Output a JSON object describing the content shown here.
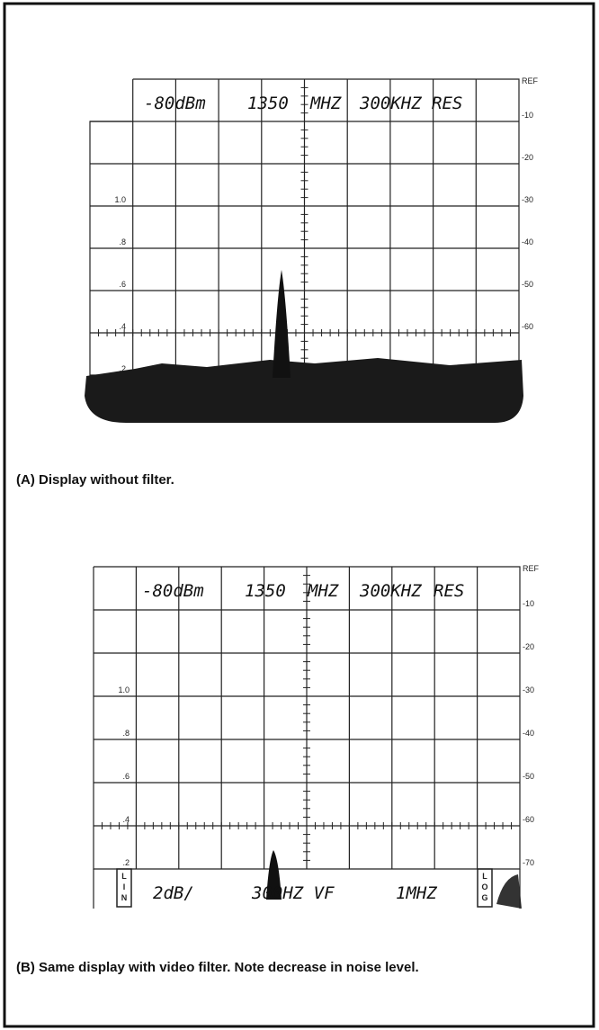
{
  "figures": [
    {
      "screen": {
        "readout": [
          "-80dBm",
          "1350",
          "MHZ",
          "300KHZ",
          "RES"
        ],
        "ref": "REF",
        "right_scale": [
          "-10",
          "-20",
          "-30",
          "-40",
          "-50",
          "-60"
        ],
        "left_scale": [
          "1.0",
          ".8",
          ".6",
          ".4",
          ".2"
        ]
      },
      "caption": "(A)  Display without filter."
    },
    {
      "screen": {
        "readout": [
          "-80dBm",
          "1350",
          "MHZ",
          "300KHZ",
          "RES"
        ],
        "ref": "REF",
        "right_scale": [
          "-10",
          "-20",
          "-30",
          "-40",
          "-50",
          "-60",
          "-70"
        ],
        "left_scale": [
          "1.0",
          ".8",
          ".6",
          ".4",
          ".2"
        ],
        "mode_left": "LIN",
        "mode_right": "LOG",
        "bottom_readout": [
          "2dB/",
          "300HZ VF",
          "1MHZ"
        ]
      },
      "caption": "(B)  Same display with video filter.  Note decrease in noise level."
    }
  ]
}
